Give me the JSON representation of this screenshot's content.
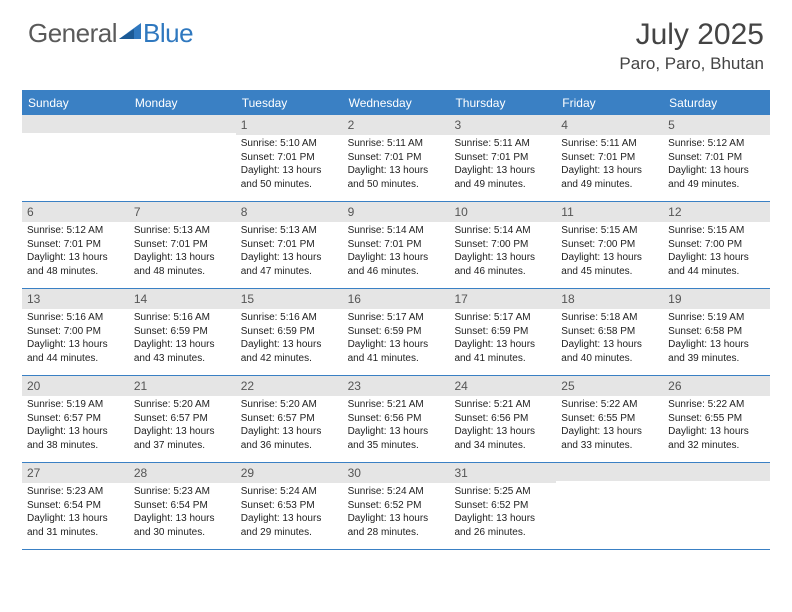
{
  "logo": {
    "text1": "General",
    "text2": "Blue",
    "text1_color": "#5a5a5a",
    "text2_color": "#2f78bf"
  },
  "title": "July 2025",
  "location": "Paro, Paro, Bhutan",
  "header_bg": "#3a80c4",
  "header_text_color": "#ffffff",
  "daynum_bg": "#e5e5e5",
  "border_color": "#3a80c4",
  "weekdays": [
    "Sunday",
    "Monday",
    "Tuesday",
    "Wednesday",
    "Thursday",
    "Friday",
    "Saturday"
  ],
  "weeks": [
    [
      null,
      null,
      {
        "n": "1",
        "sunrise": "Sunrise: 5:10 AM",
        "sunset": "Sunset: 7:01 PM",
        "daylight": "Daylight: 13 hours and 50 minutes."
      },
      {
        "n": "2",
        "sunrise": "Sunrise: 5:11 AM",
        "sunset": "Sunset: 7:01 PM",
        "daylight": "Daylight: 13 hours and 50 minutes."
      },
      {
        "n": "3",
        "sunrise": "Sunrise: 5:11 AM",
        "sunset": "Sunset: 7:01 PM",
        "daylight": "Daylight: 13 hours and 49 minutes."
      },
      {
        "n": "4",
        "sunrise": "Sunrise: 5:11 AM",
        "sunset": "Sunset: 7:01 PM",
        "daylight": "Daylight: 13 hours and 49 minutes."
      },
      {
        "n": "5",
        "sunrise": "Sunrise: 5:12 AM",
        "sunset": "Sunset: 7:01 PM",
        "daylight": "Daylight: 13 hours and 49 minutes."
      }
    ],
    [
      {
        "n": "6",
        "sunrise": "Sunrise: 5:12 AM",
        "sunset": "Sunset: 7:01 PM",
        "daylight": "Daylight: 13 hours and 48 minutes."
      },
      {
        "n": "7",
        "sunrise": "Sunrise: 5:13 AM",
        "sunset": "Sunset: 7:01 PM",
        "daylight": "Daylight: 13 hours and 48 minutes."
      },
      {
        "n": "8",
        "sunrise": "Sunrise: 5:13 AM",
        "sunset": "Sunset: 7:01 PM",
        "daylight": "Daylight: 13 hours and 47 minutes."
      },
      {
        "n": "9",
        "sunrise": "Sunrise: 5:14 AM",
        "sunset": "Sunset: 7:01 PM",
        "daylight": "Daylight: 13 hours and 46 minutes."
      },
      {
        "n": "10",
        "sunrise": "Sunrise: 5:14 AM",
        "sunset": "Sunset: 7:00 PM",
        "daylight": "Daylight: 13 hours and 46 minutes."
      },
      {
        "n": "11",
        "sunrise": "Sunrise: 5:15 AM",
        "sunset": "Sunset: 7:00 PM",
        "daylight": "Daylight: 13 hours and 45 minutes."
      },
      {
        "n": "12",
        "sunrise": "Sunrise: 5:15 AM",
        "sunset": "Sunset: 7:00 PM",
        "daylight": "Daylight: 13 hours and 44 minutes."
      }
    ],
    [
      {
        "n": "13",
        "sunrise": "Sunrise: 5:16 AM",
        "sunset": "Sunset: 7:00 PM",
        "daylight": "Daylight: 13 hours and 44 minutes."
      },
      {
        "n": "14",
        "sunrise": "Sunrise: 5:16 AM",
        "sunset": "Sunset: 6:59 PM",
        "daylight": "Daylight: 13 hours and 43 minutes."
      },
      {
        "n": "15",
        "sunrise": "Sunrise: 5:16 AM",
        "sunset": "Sunset: 6:59 PM",
        "daylight": "Daylight: 13 hours and 42 minutes."
      },
      {
        "n": "16",
        "sunrise": "Sunrise: 5:17 AM",
        "sunset": "Sunset: 6:59 PM",
        "daylight": "Daylight: 13 hours and 41 minutes."
      },
      {
        "n": "17",
        "sunrise": "Sunrise: 5:17 AM",
        "sunset": "Sunset: 6:59 PM",
        "daylight": "Daylight: 13 hours and 41 minutes."
      },
      {
        "n": "18",
        "sunrise": "Sunrise: 5:18 AM",
        "sunset": "Sunset: 6:58 PM",
        "daylight": "Daylight: 13 hours and 40 minutes."
      },
      {
        "n": "19",
        "sunrise": "Sunrise: 5:19 AM",
        "sunset": "Sunset: 6:58 PM",
        "daylight": "Daylight: 13 hours and 39 minutes."
      }
    ],
    [
      {
        "n": "20",
        "sunrise": "Sunrise: 5:19 AM",
        "sunset": "Sunset: 6:57 PM",
        "daylight": "Daylight: 13 hours and 38 minutes."
      },
      {
        "n": "21",
        "sunrise": "Sunrise: 5:20 AM",
        "sunset": "Sunset: 6:57 PM",
        "daylight": "Daylight: 13 hours and 37 minutes."
      },
      {
        "n": "22",
        "sunrise": "Sunrise: 5:20 AM",
        "sunset": "Sunset: 6:57 PM",
        "daylight": "Daylight: 13 hours and 36 minutes."
      },
      {
        "n": "23",
        "sunrise": "Sunrise: 5:21 AM",
        "sunset": "Sunset: 6:56 PM",
        "daylight": "Daylight: 13 hours and 35 minutes."
      },
      {
        "n": "24",
        "sunrise": "Sunrise: 5:21 AM",
        "sunset": "Sunset: 6:56 PM",
        "daylight": "Daylight: 13 hours and 34 minutes."
      },
      {
        "n": "25",
        "sunrise": "Sunrise: 5:22 AM",
        "sunset": "Sunset: 6:55 PM",
        "daylight": "Daylight: 13 hours and 33 minutes."
      },
      {
        "n": "26",
        "sunrise": "Sunrise: 5:22 AM",
        "sunset": "Sunset: 6:55 PM",
        "daylight": "Daylight: 13 hours and 32 minutes."
      }
    ],
    [
      {
        "n": "27",
        "sunrise": "Sunrise: 5:23 AM",
        "sunset": "Sunset: 6:54 PM",
        "daylight": "Daylight: 13 hours and 31 minutes."
      },
      {
        "n": "28",
        "sunrise": "Sunrise: 5:23 AM",
        "sunset": "Sunset: 6:54 PM",
        "daylight": "Daylight: 13 hours and 30 minutes."
      },
      {
        "n": "29",
        "sunrise": "Sunrise: 5:24 AM",
        "sunset": "Sunset: 6:53 PM",
        "daylight": "Daylight: 13 hours and 29 minutes."
      },
      {
        "n": "30",
        "sunrise": "Sunrise: 5:24 AM",
        "sunset": "Sunset: 6:52 PM",
        "daylight": "Daylight: 13 hours and 28 minutes."
      },
      {
        "n": "31",
        "sunrise": "Sunrise: 5:25 AM",
        "sunset": "Sunset: 6:52 PM",
        "daylight": "Daylight: 13 hours and 26 minutes."
      },
      null,
      null
    ]
  ]
}
